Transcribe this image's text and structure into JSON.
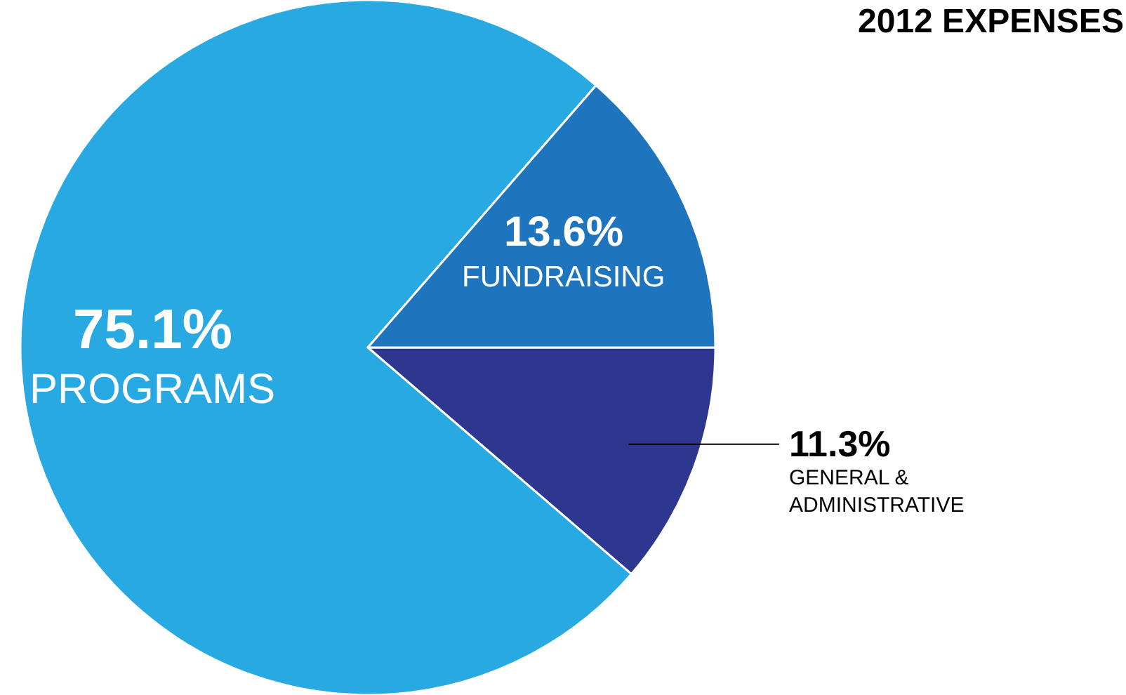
{
  "chart_data": {
    "type": "pie",
    "title": "2012 EXPENSES",
    "categories": [
      "GENERAL & ADMINISTRATIVE",
      "PROGRAMS",
      "FUNDRAISING"
    ],
    "values": [
      11.3,
      75.1,
      13.6
    ],
    "value_labels": [
      "11.3%",
      "75.1%",
      "13.6%"
    ],
    "colors": [
      "#2e3790",
      "#29a9e1",
      "#1f75bd"
    ],
    "legend": false
  }
}
